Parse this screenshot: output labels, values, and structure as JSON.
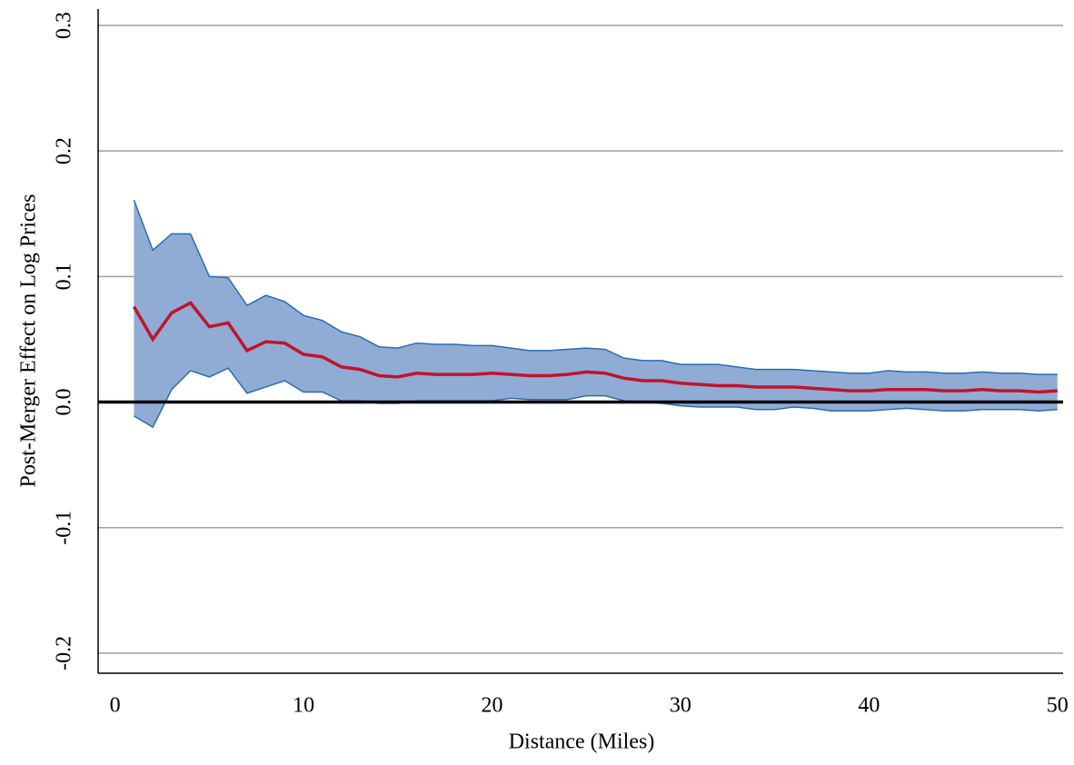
{
  "chart_data": {
    "type": "line",
    "x_label": "Distance (Miles)",
    "y_label": "Post-Merger Effect on Log Prices",
    "x": [
      1,
      2,
      3,
      4,
      5,
      6,
      7,
      8,
      9,
      10,
      11,
      12,
      13,
      14,
      15,
      16,
      17,
      18,
      19,
      20,
      21,
      22,
      23,
      24,
      25,
      26,
      27,
      28,
      29,
      30,
      31,
      32,
      33,
      34,
      35,
      36,
      37,
      38,
      39,
      40,
      41,
      42,
      43,
      44,
      45,
      46,
      47,
      48,
      49,
      50
    ],
    "series": [
      {
        "color": "#c0142c",
        "values": [
          0.076,
          0.05,
          0.071,
          0.079,
          0.06,
          0.063,
          0.041,
          0.048,
          0.047,
          0.038,
          0.036,
          0.028,
          0.026,
          0.021,
          0.02,
          0.023,
          0.022,
          0.022,
          0.022,
          0.023,
          0.022,
          0.021,
          0.021,
          0.022,
          0.024,
          0.023,
          0.019,
          0.017,
          0.017,
          0.015,
          0.014,
          0.013,
          0.013,
          0.012,
          0.012,
          0.012,
          0.011,
          0.01,
          0.009,
          0.009,
          0.01,
          0.01,
          0.01,
          0.009,
          0.009,
          0.01,
          0.009,
          0.009,
          0.008,
          0.009
        ]
      }
    ],
    "band": {
      "color": "#90acd4",
      "edge_color": "#2a6cb0",
      "upper": [
        0.161,
        0.121,
        0.134,
        0.134,
        0.1,
        0.099,
        0.077,
        0.085,
        0.08,
        0.069,
        0.065,
        0.056,
        0.052,
        0.044,
        0.043,
        0.047,
        0.046,
        0.046,
        0.045,
        0.045,
        0.043,
        0.041,
        0.041,
        0.042,
        0.043,
        0.042,
        0.035,
        0.033,
        0.033,
        0.03,
        0.03,
        0.03,
        0.028,
        0.026,
        0.026,
        0.026,
        0.025,
        0.024,
        0.023,
        0.023,
        0.025,
        0.024,
        0.024,
        0.023,
        0.023,
        0.024,
        0.023,
        0.023,
        0.022,
        0.022
      ],
      "lower": [
        -0.011,
        -0.02,
        0.01,
        0.025,
        0.02,
        0.027,
        0.007,
        0.012,
        0.017,
        0.008,
        0.008,
        0.001,
        0.001,
        -0.001,
        -0.001,
        0.001,
        0.001,
        0.001,
        0.001,
        0.001,
        0.003,
        0.002,
        0.002,
        0.002,
        0.005,
        0.005,
        0.001,
        0.0,
        -0.001,
        -0.003,
        -0.004,
        -0.004,
        -0.004,
        -0.006,
        -0.006,
        -0.004,
        -0.005,
        -0.007,
        -0.007,
        -0.007,
        -0.006,
        -0.005,
        -0.006,
        -0.007,
        -0.007,
        -0.006,
        -0.006,
        -0.006,
        -0.007,
        -0.006
      ]
    },
    "xlim": [
      -0.9,
      50.3
    ],
    "xticks": [
      0,
      10,
      20,
      30,
      40,
      50
    ],
    "ylim": [
      -0.216,
      0.313
    ],
    "yticks": [
      {
        "value": -0.2,
        "label": "-0.2"
      },
      {
        "value": -0.1,
        "label": "-0.1"
      },
      {
        "value": 0,
        "label": "0.0"
      },
      {
        "value": 0.1,
        "label": "0.1"
      },
      {
        "value": 0.2,
        "label": "0.2"
      },
      {
        "value": 0.3,
        "label": "0.3"
      }
    ],
    "grid": true
  }
}
